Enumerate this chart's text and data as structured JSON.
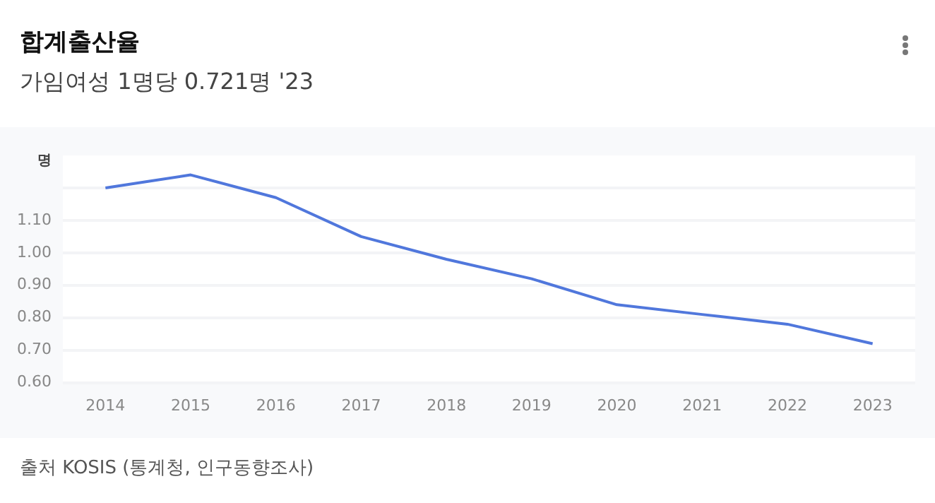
{
  "chart_data": {
    "type": "line",
    "title": "합계출산율",
    "subtitle": "가임여성 1명당 0.721명 '23",
    "ylabel": "명",
    "categories": [
      "2014",
      "2015",
      "2016",
      "2017",
      "2018",
      "2019",
      "2020",
      "2021",
      "2022",
      "2023"
    ],
    "series": [
      {
        "color": "#5077dc",
        "values": [
          1.2,
          1.24,
          1.17,
          1.05,
          0.98,
          0.92,
          0.84,
          0.81,
          0.78,
          0.72
        ]
      }
    ],
    "ylim": [
      0.6,
      1.3
    ],
    "yticks": [
      {
        "value": 0.6,
        "label": "0.60"
      },
      {
        "value": 0.7,
        "label": "0.70"
      },
      {
        "value": 0.8,
        "label": "0.80"
      },
      {
        "value": 0.9,
        "label": "0.90"
      },
      {
        "value": 1.0,
        "label": "1.00"
      },
      {
        "value": 1.1,
        "label": "1.10"
      },
      {
        "value": 1.2,
        "label": null
      }
    ],
    "grid": "y",
    "legend": false,
    "marker": "none",
    "line_style": "solid",
    "annotations": [
      "출처 KOSIS (통계청, 인구동향조사)"
    ]
  }
}
